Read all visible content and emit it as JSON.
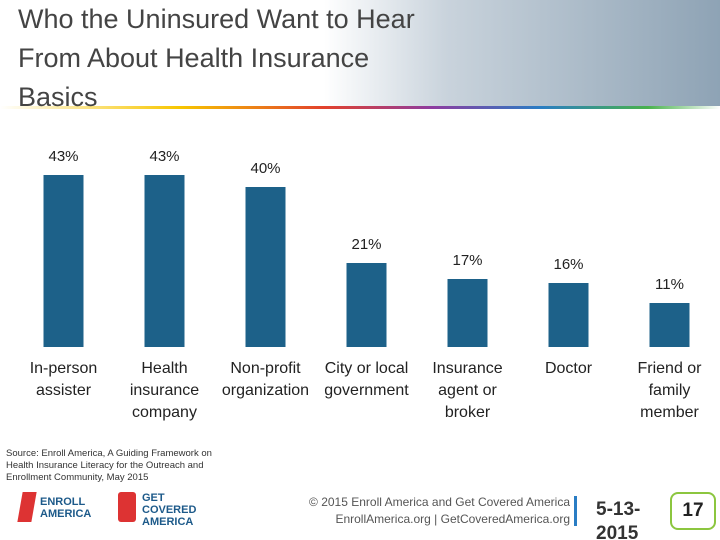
{
  "header": {
    "title": "Who the Uninsured Want to Hear From About Health Insurance Basics"
  },
  "chart_data": {
    "type": "bar",
    "categories": [
      "In-person assister",
      "Health insurance company",
      "Non-profit organization",
      "City or local government",
      "Insurance agent or broker",
      "Doctor",
      "Friend or family member"
    ],
    "values": [
      43,
      43,
      40,
      21,
      17,
      16,
      11
    ],
    "value_labels": [
      "43%",
      "43%",
      "40%",
      "21%",
      "17%",
      "16%",
      "11%"
    ],
    "color": "#1d6189"
  },
  "footer": {
    "source": "Source: Enroll America, A Guiding Framework on Health Insurance Literacy for the Outreach and Enrollment Community, May 2015",
    "logo1": "ENROLL AMERICA",
    "logo2": "GET COVERED AMERICA",
    "copyright": "© 2015 Enroll America and Get Covered America",
    "sites": "EnrollAmerica.org | GetCoveredAmerica.org",
    "date": "5-13-2015",
    "page": "17"
  }
}
